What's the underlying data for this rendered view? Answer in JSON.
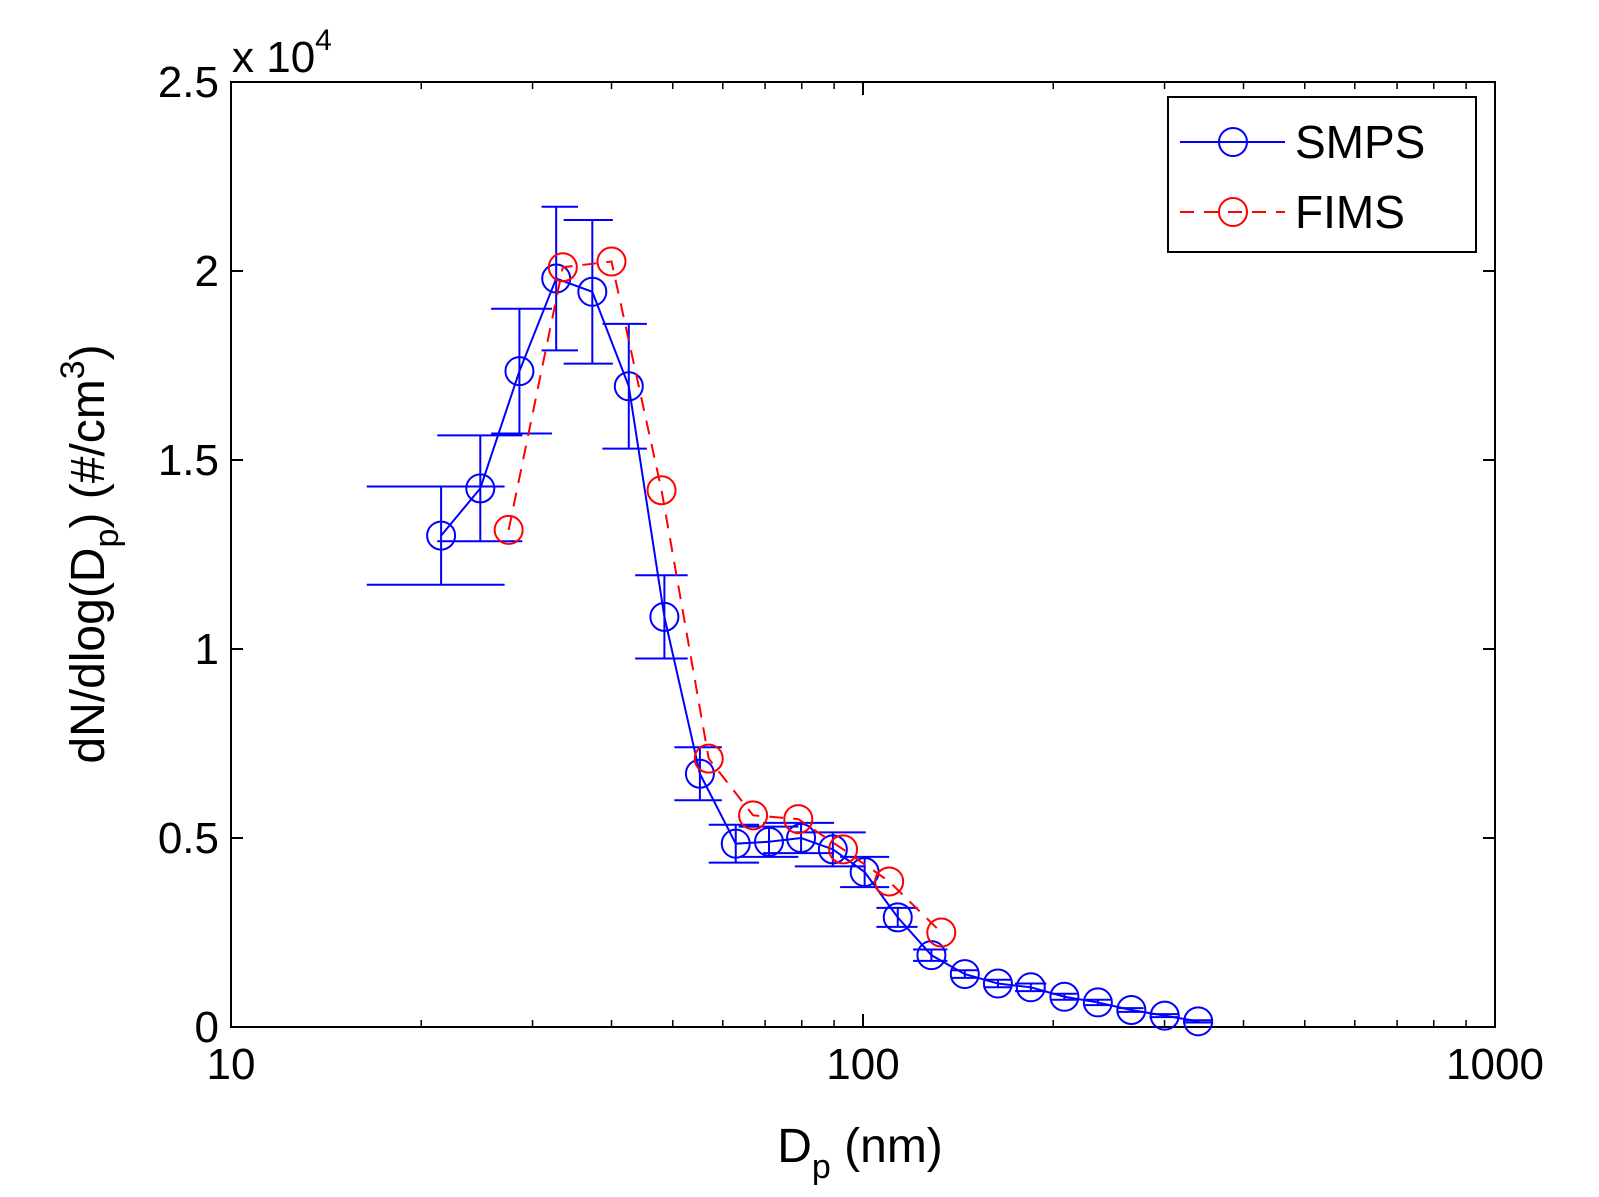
{
  "chart_data": {
    "type": "scatter",
    "title": "",
    "xlabel": "D_p (nm)",
    "ylabel": "dN/dlog(D_p) (#/cm^3)",
    "x_scale": "log",
    "xlim": [
      10,
      1000
    ],
    "ylim": [
      0,
      25000
    ],
    "y_exponent_label": "x 10^4",
    "x_ticks": [
      10,
      100,
      1000
    ],
    "x_tick_labels": [
      "10",
      "100",
      "1000"
    ],
    "y_ticks": [
      0,
      5000,
      10000,
      15000,
      20000,
      25000
    ],
    "y_tick_labels": [
      "0",
      "0.5",
      "1",
      "1.5",
      "2",
      "2.5"
    ],
    "grid": false,
    "legend_position": "top-right",
    "series": [
      {
        "name": "SMPS",
        "color": "#0000ff",
        "line_style": "solid",
        "marker": "circle",
        "x": [
          21.5,
          24.8,
          28.6,
          32.7,
          37.3,
          42.6,
          48.5,
          55.2,
          62.9,
          71.0,
          79.8,
          89.6,
          100.6,
          113.5,
          128.3,
          144.9,
          163.5,
          184.3,
          208.3,
          235.3,
          265.8,
          300.2,
          339.1
        ],
        "y": [
          13000,
          14250,
          17350,
          19800,
          19450,
          16950,
          10850,
          6700,
          4850,
          4900,
          5000,
          4700,
          4100,
          2900,
          1900,
          1400,
          1150,
          1050,
          800,
          650,
          450,
          300,
          150
        ],
        "y_error": [
          1300,
          1400,
          1650,
          1900,
          1900,
          1650,
          1100,
          700,
          500,
          400,
          400,
          450,
          400,
          250,
          150,
          100,
          100,
          100,
          80,
          70,
          50,
          40,
          30
        ],
        "x_error_low": [
          16.4,
          21.2,
          25.8,
          31.0,
          33.6,
          38.7,
          43.6,
          50.3,
          57.0,
          63.6,
          69.5,
          78.0,
          92.0,
          105.0,
          120.0,
          138.0,
          155.0,
          174.0,
          198.0,
          223.0,
          252.0,
          284.0,
          321.0
        ],
        "x_error_high": [
          27.1,
          28.9,
          32.2,
          35.4,
          40.2,
          45.5,
          52.8,
          59.8,
          68.5,
          79.0,
          90.0,
          101.0,
          110.0,
          122.0,
          136.0,
          152.0,
          172.0,
          195.0,
          218.0,
          248.0,
          278.0,
          316.0,
          356.0
        ]
      },
      {
        "name": "FIMS",
        "color": "#ff0000",
        "line_style": "dashed",
        "marker": "circle",
        "x": [
          27.5,
          33.5,
          40.0,
          48.0,
          57.0,
          67.0,
          79.0,
          93.0,
          110.0,
          133.0
        ],
        "y": [
          13150,
          20100,
          20250,
          14200,
          7100,
          5600,
          5500,
          4700,
          3850,
          2500
        ]
      }
    ]
  }
}
